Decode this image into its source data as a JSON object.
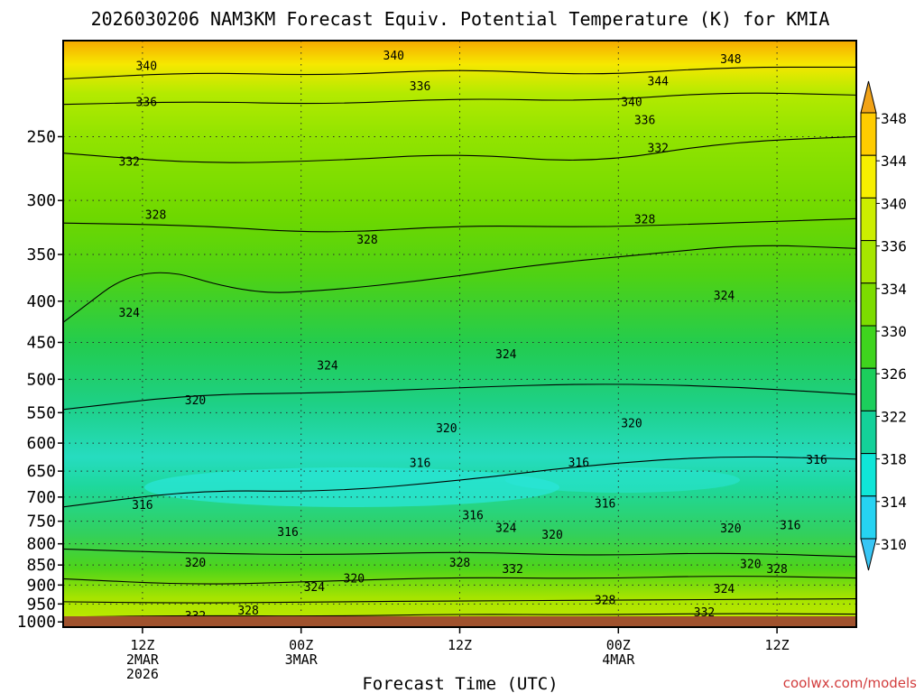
{
  "chart_data": {
    "type": "contour",
    "title": "2026030206 NAM3KM Forecast Equiv. Potential Temperature (K) for KMIA",
    "xlabel": "Forecast Time (UTC)",
    "ylabel": "",
    "y_axis_log_pressure": true,
    "ylim": [
      1015,
      190
    ],
    "xlim": [
      0,
      60
    ],
    "y_ticks": [
      {
        "v": 250,
        "l": "250"
      },
      {
        "v": 300,
        "l": "300"
      },
      {
        "v": 350,
        "l": "350"
      },
      {
        "v": 400,
        "l": "400"
      },
      {
        "v": 450,
        "l": "450"
      },
      {
        "v": 500,
        "l": "500"
      },
      {
        "v": 550,
        "l": "550"
      },
      {
        "v": 600,
        "l": "600"
      },
      {
        "v": 650,
        "l": "650"
      },
      {
        "v": 700,
        "l": "700"
      },
      {
        "v": 750,
        "l": "750"
      },
      {
        "v": 800,
        "l": "800"
      },
      {
        "v": 850,
        "l": "850"
      },
      {
        "v": 900,
        "l": "900"
      },
      {
        "v": 950,
        "l": "950"
      },
      {
        "v": 1000,
        "l": "1000"
      }
    ],
    "x_ticks": [
      {
        "v": 6,
        "lines": [
          "12Z",
          "2MAR",
          "2026"
        ]
      },
      {
        "v": 18,
        "lines": [
          "00Z",
          "3MAR"
        ]
      },
      {
        "v": 30,
        "lines": [
          "12Z"
        ]
      },
      {
        "v": 42,
        "lines": [
          "00Z",
          "4MAR"
        ]
      },
      {
        "v": 54,
        "lines": [
          "12Z"
        ]
      }
    ],
    "colorbar": {
      "levels": [
        "348",
        "344",
        "340",
        "336",
        "334",
        "330",
        "326",
        "322",
        "318",
        "314",
        "310"
      ],
      "colors": [
        "#f2a317",
        "#ffcc00",
        "#f7ef00",
        "#ccee00",
        "#a6e600",
        "#7cdc00",
        "#3fd41e",
        "#1cce5c",
        "#14d099",
        "#10e6d8",
        "#26d3f2",
        "#38c6f5"
      ]
    },
    "isotherms": [
      {
        "v": 340,
        "p": [
          [
            0,
            212
          ],
          [
            10,
            208
          ],
          [
            20,
            210
          ],
          [
            30,
            206
          ],
          [
            40,
            210
          ],
          [
            50,
            205
          ],
          [
            60,
            205
          ]
        ]
      },
      {
        "v": 336,
        "p": [
          [
            0,
            228
          ],
          [
            10,
            226
          ],
          [
            20,
            228
          ],
          [
            30,
            224
          ],
          [
            40,
            226
          ],
          [
            50,
            220
          ],
          [
            60,
            222
          ]
        ]
      },
      {
        "v": 332,
        "p": [
          [
            0,
            262
          ],
          [
            10,
            270
          ],
          [
            20,
            268
          ],
          [
            30,
            262
          ],
          [
            40,
            270
          ],
          [
            50,
            254
          ],
          [
            60,
            250
          ]
        ]
      },
      {
        "v": 328,
        "p": [
          [
            0,
            320
          ],
          [
            10,
            322
          ],
          [
            20,
            330
          ],
          [
            30,
            322
          ],
          [
            40,
            324
          ],
          [
            50,
            320
          ],
          [
            60,
            316
          ]
        ]
      },
      {
        "v": 324,
        "p": [
          [
            0,
            425
          ],
          [
            6,
            358
          ],
          [
            14,
            392
          ],
          [
            20,
            388
          ],
          [
            28,
            376
          ],
          [
            36,
            360
          ],
          [
            44,
            350
          ],
          [
            52,
            340
          ],
          [
            60,
            344
          ]
        ]
      },
      {
        "v": 320,
        "p": [
          [
            0,
            545
          ],
          [
            10,
            522
          ],
          [
            20,
            520
          ],
          [
            30,
            512
          ],
          [
            40,
            506
          ],
          [
            50,
            510
          ],
          [
            60,
            522
          ]
        ]
      },
      {
        "v": 316,
        "p": [
          [
            0,
            720
          ],
          [
            10,
            686
          ],
          [
            20,
            690
          ],
          [
            30,
            668
          ],
          [
            40,
            638
          ],
          [
            50,
            622
          ],
          [
            60,
            628
          ]
        ]
      },
      {
        "v": 320,
        "p": [
          [
            0,
            812
          ],
          [
            10,
            822
          ],
          [
            20,
            826
          ],
          [
            30,
            818
          ],
          [
            40,
            828
          ],
          [
            50,
            820
          ],
          [
            60,
            830
          ]
        ]
      },
      {
        "v": 324,
        "p": [
          [
            0,
            884
          ],
          [
            10,
            900
          ],
          [
            20,
            890
          ],
          [
            30,
            880
          ],
          [
            40,
            884
          ],
          [
            50,
            876
          ],
          [
            60,
            882
          ]
        ]
      },
      {
        "v": 328,
        "p": [
          [
            0,
            944
          ],
          [
            10,
            948
          ],
          [
            20,
            944
          ],
          [
            30,
            942
          ],
          [
            40,
            940
          ],
          [
            50,
            938
          ],
          [
            60,
            936
          ]
        ]
      },
      {
        "v": 332,
        "p": [
          [
            0,
            986
          ],
          [
            10,
            982
          ],
          [
            20,
            984
          ],
          [
            30,
            978
          ],
          [
            40,
            980
          ],
          [
            50,
            976
          ],
          [
            60,
            978
          ]
        ]
      }
    ],
    "contour_labels": [
      {
        "x": 6.3,
        "p": 204,
        "t": "340"
      },
      {
        "x": 25,
        "p": 198,
        "t": "340"
      },
      {
        "x": 50.5,
        "p": 200,
        "t": "348"
      },
      {
        "x": 6.3,
        "p": 226,
        "t": "336"
      },
      {
        "x": 27,
        "p": 216,
        "t": "336"
      },
      {
        "x": 45,
        "p": 213,
        "t": "344"
      },
      {
        "x": 43,
        "p": 226,
        "t": "340"
      },
      {
        "x": 44,
        "p": 238,
        "t": "336"
      },
      {
        "x": 45,
        "p": 258,
        "t": "332"
      },
      {
        "x": 5,
        "p": 268,
        "t": "332"
      },
      {
        "x": 7,
        "p": 312,
        "t": "328"
      },
      {
        "x": 23,
        "p": 335,
        "t": "328"
      },
      {
        "x": 44,
        "p": 316,
        "t": "328"
      },
      {
        "x": 5,
        "p": 413,
        "t": "324"
      },
      {
        "x": 20,
        "p": 480,
        "t": "324"
      },
      {
        "x": 33.5,
        "p": 465,
        "t": "324"
      },
      {
        "x": 50,
        "p": 393,
        "t": "324"
      },
      {
        "x": 10,
        "p": 530,
        "t": "320"
      },
      {
        "x": 29,
        "p": 574,
        "t": "320"
      },
      {
        "x": 43,
        "p": 566,
        "t": "320"
      },
      {
        "x": 27,
        "p": 634,
        "t": "316"
      },
      {
        "x": 39,
        "p": 633,
        "t": "316"
      },
      {
        "x": 57,
        "p": 628,
        "t": "316"
      },
      {
        "x": 6,
        "p": 715,
        "t": "316"
      },
      {
        "x": 17,
        "p": 772,
        "t": "316"
      },
      {
        "x": 31,
        "p": 736,
        "t": "316"
      },
      {
        "x": 41,
        "p": 712,
        "t": "316"
      },
      {
        "x": 55,
        "p": 758,
        "t": "316"
      },
      {
        "x": 33.5,
        "p": 763,
        "t": "324"
      },
      {
        "x": 37,
        "p": 778,
        "t": "320"
      },
      {
        "x": 50.5,
        "p": 764,
        "t": "320"
      },
      {
        "x": 10,
        "p": 843,
        "t": "320"
      },
      {
        "x": 22,
        "p": 882,
        "t": "320"
      },
      {
        "x": 30,
        "p": 843,
        "t": "328"
      },
      {
        "x": 34,
        "p": 858,
        "t": "332"
      },
      {
        "x": 52,
        "p": 846,
        "t": "320"
      },
      {
        "x": 54,
        "p": 858,
        "t": "328"
      },
      {
        "x": 19,
        "p": 904,
        "t": "324"
      },
      {
        "x": 50,
        "p": 908,
        "t": "324"
      },
      {
        "x": 14,
        "p": 966,
        "t": "328"
      },
      {
        "x": 41,
        "p": 938,
        "t": "328"
      },
      {
        "x": 10,
        "p": 982,
        "t": "332"
      },
      {
        "x": 48.5,
        "p": 972,
        "t": "332"
      }
    ]
  },
  "credit": "coolwx.com/models"
}
